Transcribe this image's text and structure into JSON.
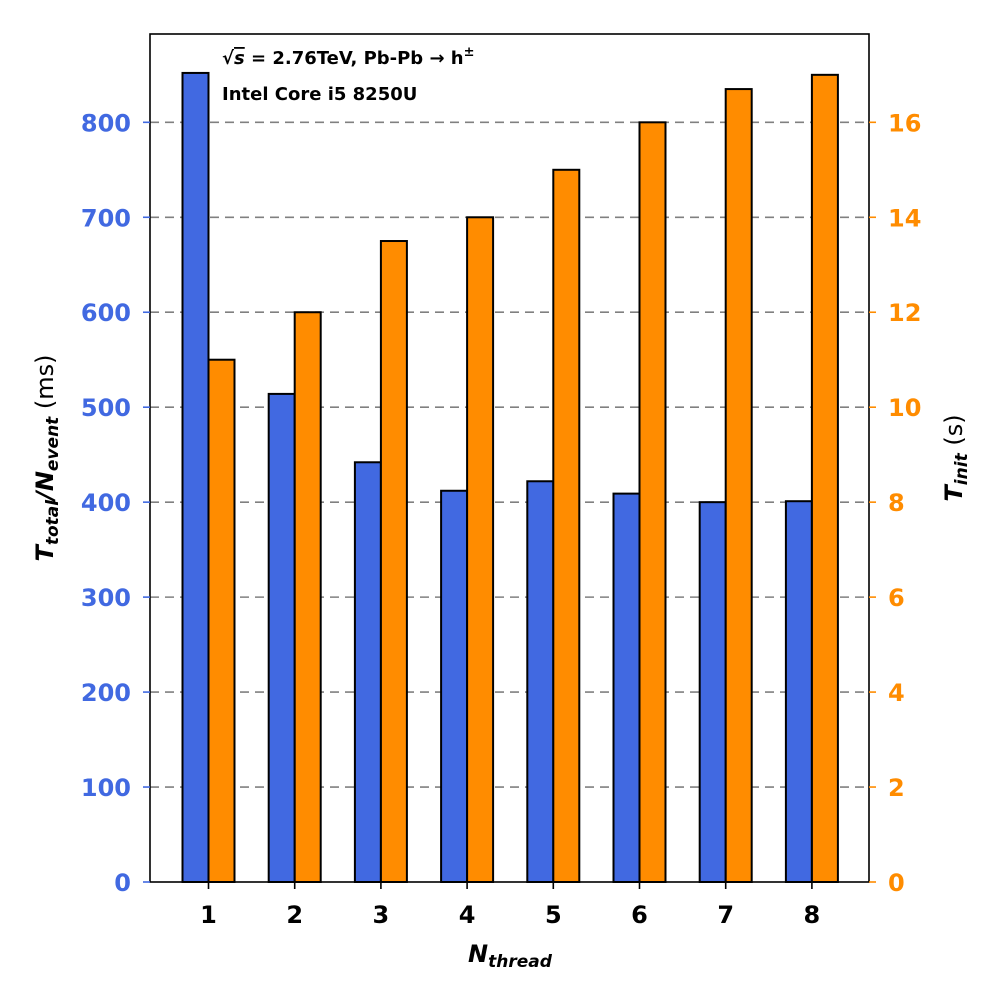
{
  "chart_data": {
    "type": "bar",
    "categories": [
      "1",
      "2",
      "3",
      "4",
      "5",
      "6",
      "7",
      "8"
    ],
    "series": [
      {
        "name": "T_total/N_event",
        "axis": "left",
        "color": "#4169E1",
        "values": [
          852,
          514,
          442,
          412,
          422,
          409,
          400,
          401
        ]
      },
      {
        "name": "T_init",
        "axis": "right",
        "color": "#FF8C00",
        "values": [
          11.0,
          12.0,
          13.5,
          14.0,
          15.0,
          16.0,
          16.7,
          17.0
        ]
      }
    ],
    "xlabel": {
      "main": "N",
      "sub": "thread"
    },
    "ylabel_left": {
      "main": "T",
      "sub": "total",
      "mid": "/N",
      "sub2": "event",
      "unit": " (ms)"
    },
    "ylabel_right": {
      "main": "T",
      "sub": "init",
      "unit": " (s)"
    },
    "ylim_left": [
      0,
      893
    ],
    "ylim_right": [
      0,
      17.86
    ],
    "yticks_left": [
      0,
      100,
      200,
      300,
      400,
      500,
      600,
      700,
      800
    ],
    "yticks_right": [
      0,
      2,
      4,
      6,
      8,
      10,
      12,
      14,
      16
    ],
    "grid": "horizontal dashed at left ticks",
    "annotations": {
      "line1_sqrt": "√",
      "line1_s": "s",
      "line1_rest": " = 2.76TeV, Pb-Pb → h",
      "line1_sup": "±",
      "line2": "Intel Core i5 8250U"
    },
    "colors": {
      "left_axis": "#4169E1",
      "right_axis": "#FF8C00",
      "grid": "#808080"
    }
  }
}
